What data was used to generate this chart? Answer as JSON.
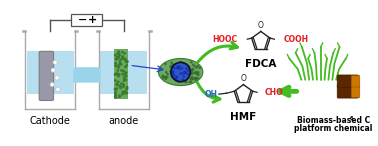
{
  "bg_color": "#ffffff",
  "text_cathode": "Cathode",
  "text_anode": "anode",
  "text_hmf": "HMF",
  "text_fdca": "FDCA",
  "text_biomass_line1": "Biomass-based C",
  "text_biomass_line2": "platform chemical",
  "text_6": "6",
  "text_minus": "−",
  "text_plus": "+",
  "text_HOOC": "HOOC",
  "text_COOH": "COOH",
  "text_OH": "OH",
  "text_CHO": "CHO",
  "text_O": "O",
  "label_color_red": "#e8191e",
  "label_color_blue": "#2266cc",
  "label_color_black": "#1a1a1a",
  "label_color_green": "#44bb22",
  "arrow_green": "#44bb22",
  "water_color": "#b8dff0",
  "beaker_color": "#aaaaaa",
  "cathode_plate_color": "#9898a8",
  "anode_plate_color": "#6aaa5e",
  "nanotube_blue": "#3355cc",
  "nanotube_green": "#6aaa5e",
  "connector_color": "#99d4eb",
  "wire_color": "#555555",
  "salt_bridge_color": "#99d4eb"
}
